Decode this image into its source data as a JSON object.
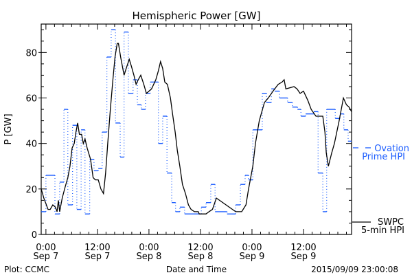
{
  "chart_data": {
    "type": "line",
    "title": "Hemispheric Power [GW]",
    "xlabel": "Date and Time",
    "ylabel": "P [GW]",
    "xunit": "hours since 2015-09-07 00:00",
    "xlim": [
      -1.1,
      71.2
    ],
    "ylim": [
      0,
      92.5
    ],
    "y_ticks": [
      0,
      20,
      40,
      60,
      80
    ],
    "y_minor_step": 5,
    "x_ticks": [
      {
        "hour": 0,
        "time": "0:00",
        "date": "Sep 7"
      },
      {
        "hour": 12,
        "time": "12:00",
        "date": "Sep 7"
      },
      {
        "hour": 24,
        "time": "0:00",
        "date": "Sep 8"
      },
      {
        "hour": 36,
        "time": "12:00",
        "date": "Sep 8"
      },
      {
        "hour": 48,
        "time": "0:00",
        "date": "Sep 9"
      },
      {
        "hour": 60,
        "time": "12:00",
        "date": "Sep 9"
      }
    ],
    "x_minor_step": 2,
    "grid": false,
    "series": [
      {
        "name": "SWPC 5-min HPI",
        "legend_lines": [
          "SWPC",
          "5-min HPI"
        ],
        "color": "#000000",
        "style": "solid",
        "points": [
          [
            -1.1,
            20
          ],
          [
            -0.5,
            16
          ],
          [
            0.5,
            11
          ],
          [
            1.0,
            11
          ],
          [
            1.6,
            13
          ],
          [
            2.2,
            12
          ],
          [
            2.6,
            10
          ],
          [
            2.9,
            15
          ],
          [
            3.2,
            10
          ],
          [
            3.8,
            16
          ],
          [
            4.5,
            21
          ],
          [
            5.1,
            25
          ],
          [
            5.6,
            30
          ],
          [
            6.1,
            38
          ],
          [
            6.6,
            40
          ],
          [
            7.0,
            45
          ],
          [
            7.4,
            49
          ],
          [
            7.8,
            44
          ],
          [
            8.3,
            44
          ],
          [
            8.7,
            40
          ],
          [
            9.1,
            42
          ],
          [
            9.6,
            38
          ],
          [
            10.4,
            33
          ],
          [
            11.0,
            25
          ],
          [
            11.5,
            24
          ],
          [
            12.2,
            24
          ],
          [
            12.8,
            20
          ],
          [
            13.4,
            18
          ],
          [
            13.9,
            27
          ],
          [
            14.4,
            40
          ],
          [
            15.0,
            55
          ],
          [
            15.6,
            68
          ],
          [
            16.1,
            78
          ],
          [
            16.6,
            84
          ],
          [
            16.9,
            84
          ],
          [
            17.4,
            78
          ],
          [
            17.9,
            73
          ],
          [
            18.2,
            70
          ],
          [
            18.7,
            73
          ],
          [
            19.4,
            77
          ],
          [
            19.9,
            74
          ],
          [
            20.5,
            70
          ],
          [
            21.0,
            66
          ],
          [
            21.5,
            68
          ],
          [
            22.1,
            70
          ],
          [
            22.8,
            66
          ],
          [
            23.4,
            62
          ],
          [
            24.0,
            63
          ],
          [
            24.6,
            64
          ],
          [
            25.1,
            66
          ],
          [
            25.6,
            68
          ],
          [
            26.2,
            72
          ],
          [
            26.7,
            76
          ],
          [
            27.2,
            73
          ],
          [
            27.7,
            67
          ],
          [
            28.3,
            66
          ],
          [
            29.0,
            60
          ],
          [
            29.5,
            53
          ],
          [
            30.1,
            45
          ],
          [
            30.6,
            37
          ],
          [
            31.2,
            30
          ],
          [
            31.8,
            22
          ],
          [
            32.5,
            18
          ],
          [
            33.2,
            13
          ],
          [
            33.8,
            11
          ],
          [
            34.6,
            10
          ],
          [
            35.5,
            10
          ],
          [
            35.7,
            9
          ],
          [
            37.3,
            9
          ],
          [
            38.0,
            10
          ],
          [
            38.8,
            11
          ],
          [
            39.7,
            16
          ],
          [
            44.2,
            10
          ],
          [
            45.6,
            10
          ],
          [
            46.6,
            13
          ],
          [
            47.2,
            20
          ],
          [
            48.2,
            30
          ],
          [
            48.8,
            40
          ],
          [
            49.7,
            50
          ],
          [
            50.9,
            58
          ],
          [
            51.8,
            60
          ],
          [
            52.9,
            63
          ],
          [
            54.1,
            66
          ],
          [
            55.0,
            67
          ],
          [
            55.5,
            68
          ],
          [
            55.9,
            64
          ],
          [
            57.8,
            65
          ],
          [
            58.5,
            64
          ],
          [
            59.2,
            62
          ],
          [
            60.0,
            63
          ],
          [
            61.0,
            59
          ],
          [
            61.8,
            55
          ],
          [
            62.9,
            52
          ],
          [
            64.5,
            52
          ],
          [
            65.0,
            45
          ],
          [
            65.3,
            36
          ],
          [
            65.8,
            30
          ],
          [
            66.6,
            36
          ],
          [
            67.2,
            40
          ],
          [
            68.3,
            50
          ],
          [
            69.3,
            60
          ],
          [
            70.0,
            57
          ],
          [
            70.6,
            56
          ],
          [
            70.9,
            55
          ],
          [
            71.2,
            54
          ]
        ]
      },
      {
        "name": "Ovation Prime HPI",
        "legend_lines": [
          "Ovation",
          "Prime HPI"
        ],
        "color": "#1a5cff",
        "style": "steps (dashed level, dotted risers)",
        "steps": [
          [
            -1.1,
            10
          ],
          [
            0,
            26
          ],
          [
            2.1,
            9
          ],
          [
            3.2,
            23
          ],
          [
            4.2,
            55
          ],
          [
            5.1,
            13
          ],
          [
            6.2,
            48
          ],
          [
            7.2,
            11
          ],
          [
            8.2,
            46
          ],
          [
            9.1,
            9
          ],
          [
            10.2,
            33
          ],
          [
            11.2,
            28
          ],
          [
            12.2,
            29
          ],
          [
            13.1,
            45
          ],
          [
            14.2,
            78
          ],
          [
            15.2,
            90
          ],
          [
            16.2,
            49
          ],
          [
            17.3,
            34
          ],
          [
            18.2,
            89
          ],
          [
            19.2,
            62
          ],
          [
            20.3,
            68
          ],
          [
            21.3,
            57
          ],
          [
            22.2,
            55
          ],
          [
            23.2,
            62
          ],
          [
            24.3,
            67
          ],
          [
            26.2,
            40
          ],
          [
            27.2,
            52
          ],
          [
            28.2,
            27
          ],
          [
            29.3,
            14
          ],
          [
            30.2,
            10
          ],
          [
            31.2,
            12
          ],
          [
            32.3,
            9
          ],
          [
            36.2,
            12
          ],
          [
            37.3,
            14
          ],
          [
            38.4,
            22
          ],
          [
            39.4,
            10
          ],
          [
            42.2,
            9
          ],
          [
            44.2,
            13
          ],
          [
            45.3,
            22
          ],
          [
            46.4,
            26
          ],
          [
            47.2,
            24
          ],
          [
            48.2,
            46
          ],
          [
            50.4,
            62
          ],
          [
            51.4,
            58
          ],
          [
            52.5,
            64
          ],
          [
            53.3,
            63
          ],
          [
            54.4,
            60
          ],
          [
            56.3,
            58
          ],
          [
            57.4,
            56
          ],
          [
            58.6,
            55
          ],
          [
            59.4,
            52
          ],
          [
            60.5,
            53
          ],
          [
            62.4,
            54
          ],
          [
            63.4,
            27
          ],
          [
            64.5,
            10
          ],
          [
            65.4,
            55
          ],
          [
            67.4,
            51
          ],
          [
            68.5,
            53
          ],
          [
            69.4,
            46
          ],
          [
            70.4,
            41
          ]
        ],
        "end_hour": 71.2
      }
    ]
  },
  "footer": {
    "left": "Plot: CCMC",
    "center": "Date and Time",
    "right": "2015/09/09 23:00:08"
  }
}
